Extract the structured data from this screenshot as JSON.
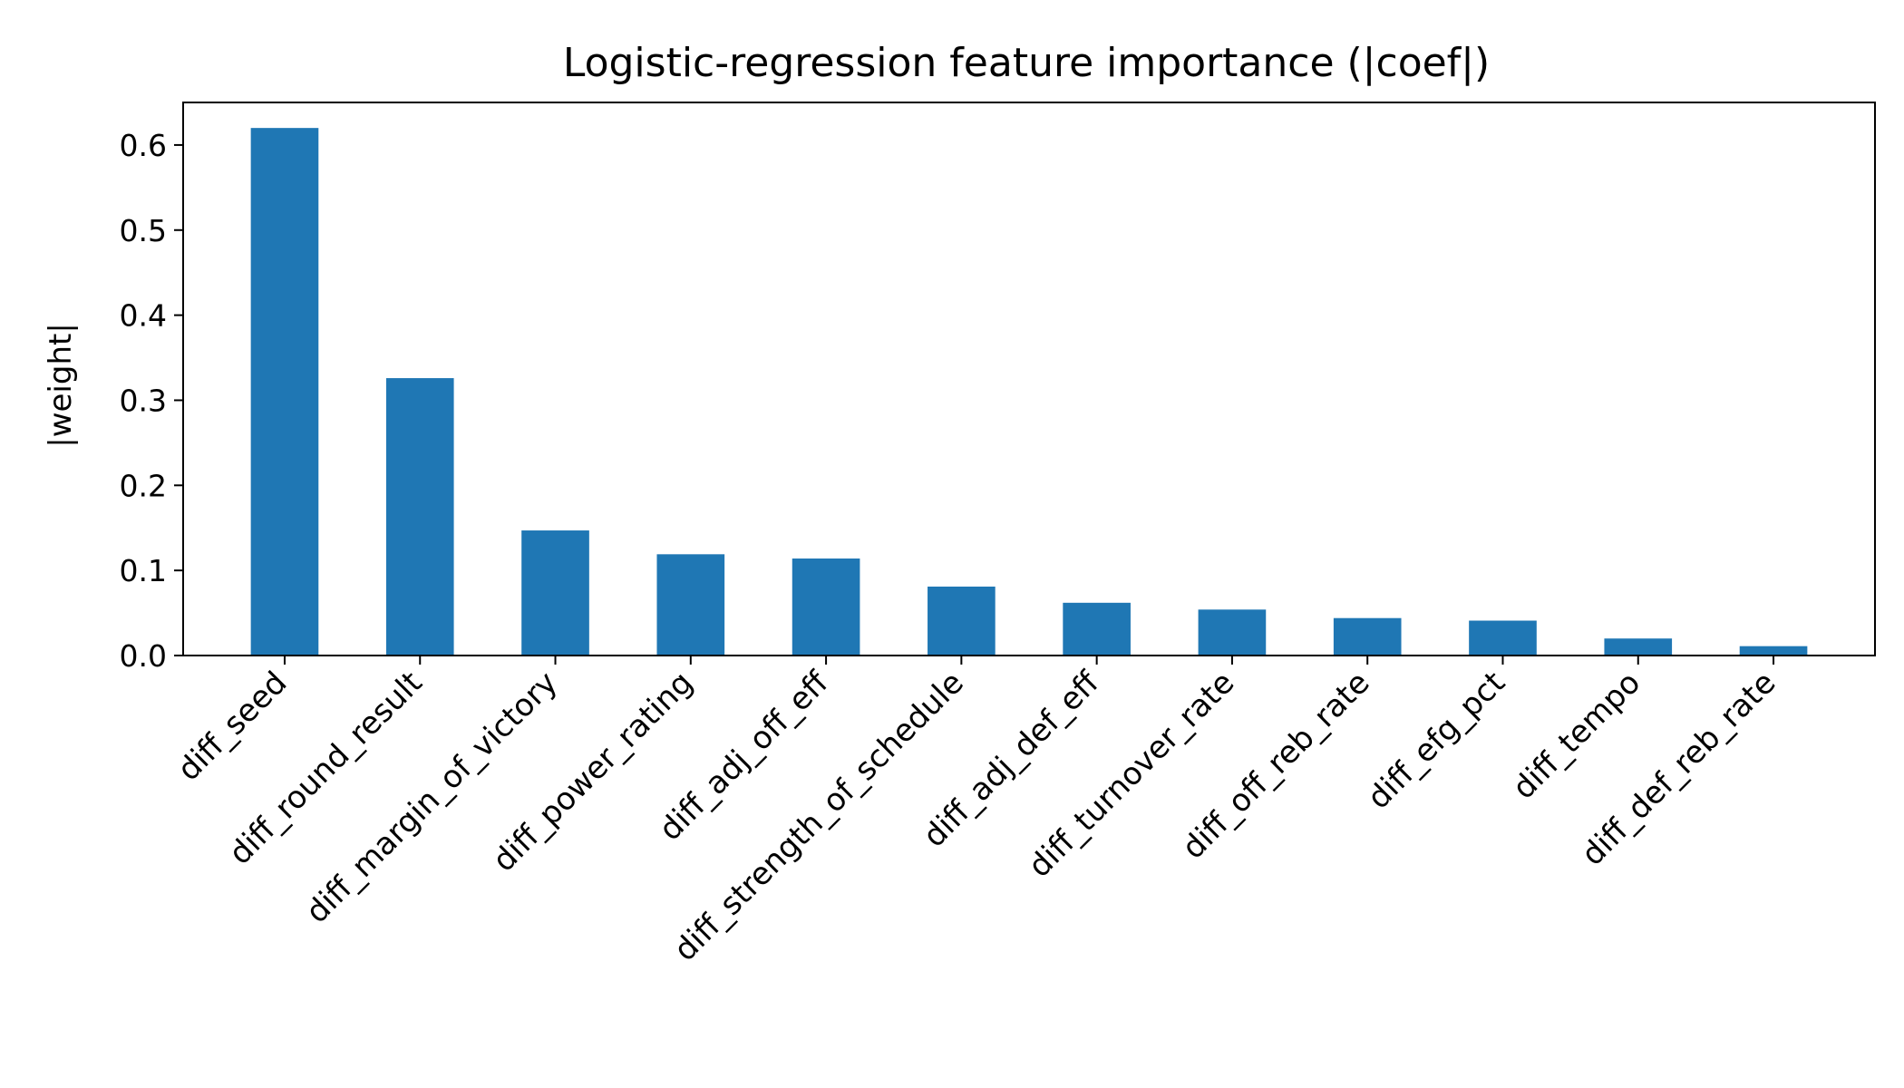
{
  "chart_data": {
    "type": "bar",
    "title": "Logistic-regression feature importance (|coef|)",
    "xlabel": "",
    "ylabel": "|weight|",
    "ylim": [
      0,
      0.65
    ],
    "yticks": [
      "0.0",
      "0.1",
      "0.2",
      "0.3",
      "0.4",
      "0.5",
      "0.6"
    ],
    "grid": false,
    "categories": [
      "diff_seed",
      "diff_round_result",
      "diff_margin_of_victory",
      "diff_power_rating",
      "diff_adj_off_eff",
      "diff_strength_of_schedule",
      "diff_adj_def_eff",
      "diff_turnover_rate",
      "diff_off_reb_rate",
      "diff_efg_pct",
      "diff_tempo",
      "diff_def_reb_rate"
    ],
    "values": [
      0.62,
      0.326,
      0.147,
      0.119,
      0.114,
      0.081,
      0.062,
      0.054,
      0.044,
      0.041,
      0.02,
      0.011
    ],
    "bar_color": "#1f77b4",
    "axis_color": "#000000"
  }
}
